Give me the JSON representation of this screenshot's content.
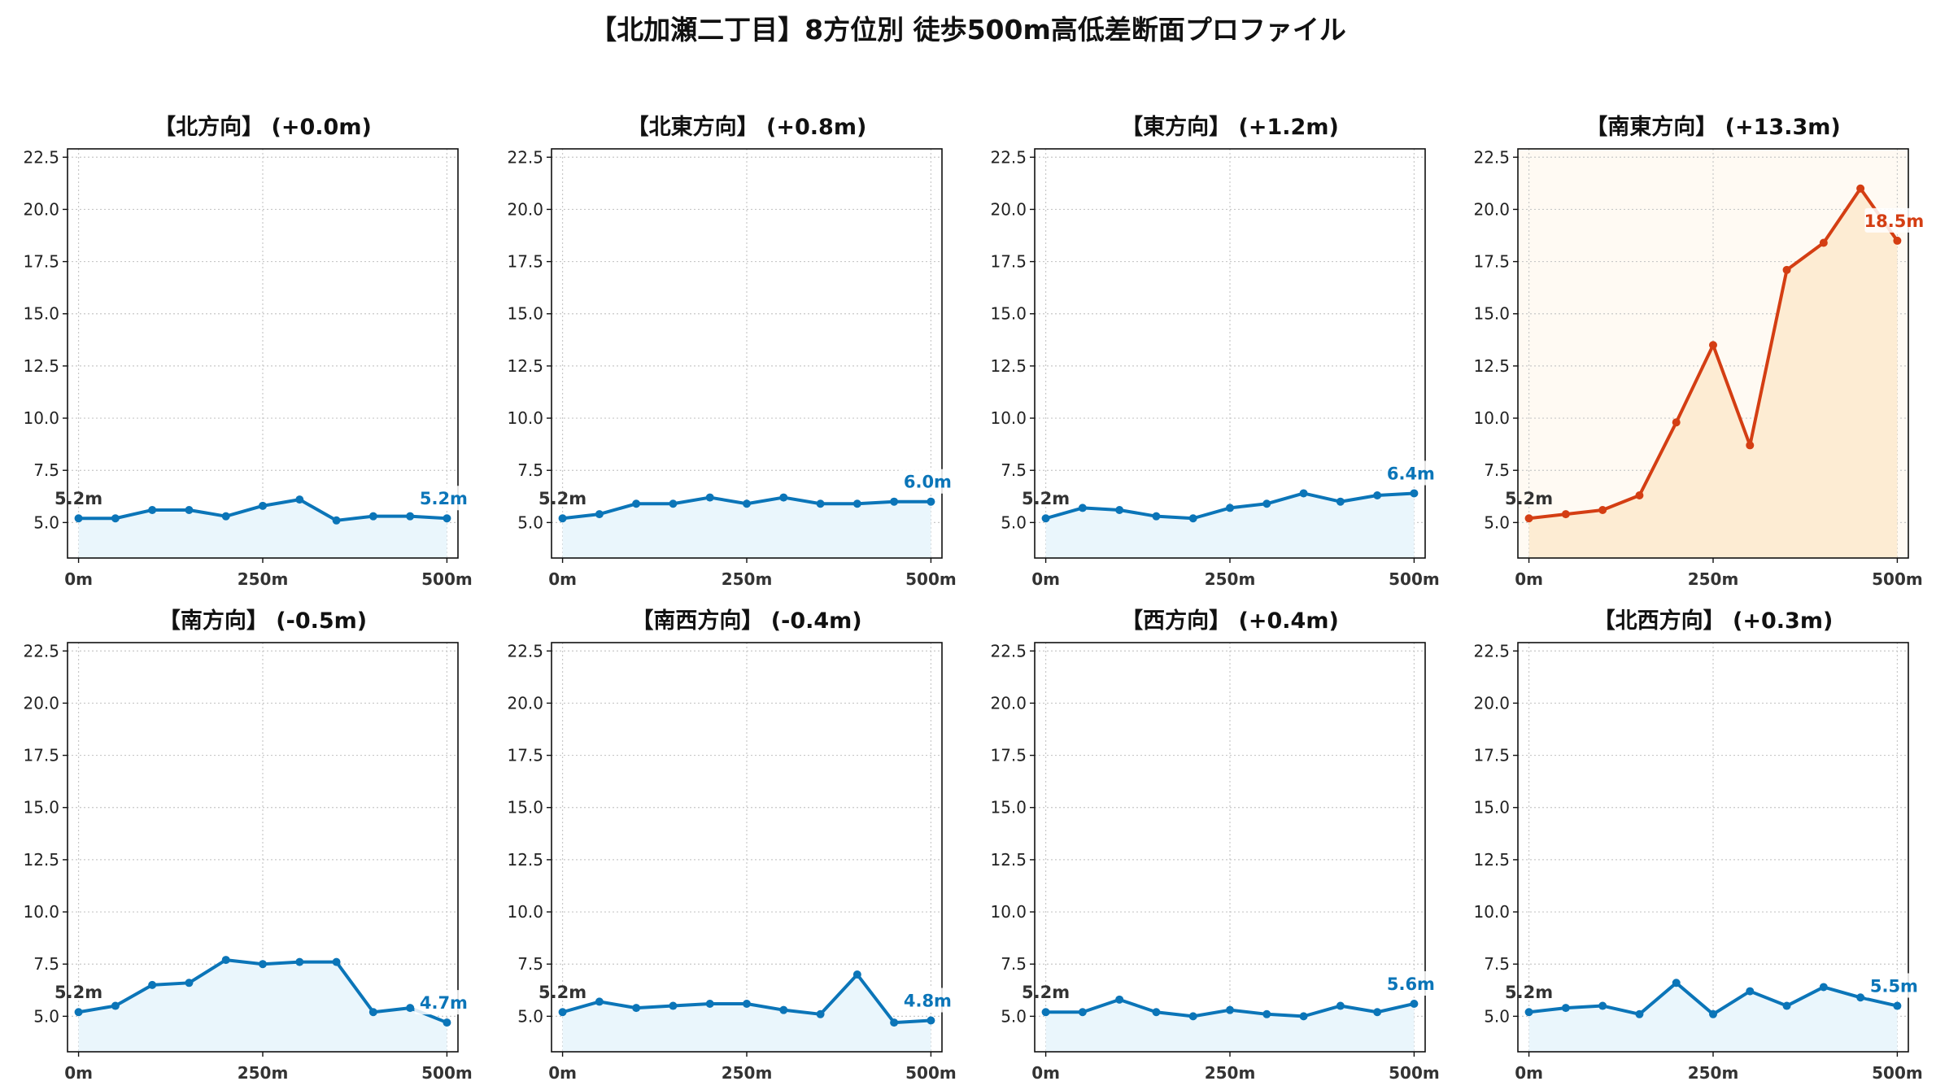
{
  "title": "【北加瀬二丁目】8方位別 徒歩500m高低差断面プロファイル",
  "colors": {
    "normal_line": "#0b75b8",
    "normal_fill": "#eaf6fc",
    "highlight_line": "#d43e13",
    "highlight_fill": "#fdecd3",
    "highlight_bg": "#fffaf3",
    "start_label": "#333333"
  },
  "chart_data": [
    {
      "type": "line",
      "title": "【北方向】 (+0.0m)",
      "x": [
        0,
        50,
        100,
        150,
        200,
        250,
        300,
        350,
        400,
        450,
        500
      ],
      "y": [
        5.2,
        5.2,
        5.6,
        5.6,
        5.3,
        5.8,
        6.1,
        5.1,
        5.3,
        5.3,
        5.2
      ],
      "start_label": "5.2m",
      "end_label": "5.2m",
      "xtick_labels": [
        "0m",
        "250m",
        "500m"
      ],
      "yticks": [
        "5.0",
        "7.5",
        "10.0",
        "12.5",
        "15.0",
        "17.5",
        "20.0",
        "22.5"
      ],
      "ylim": [
        3.3,
        22.9
      ],
      "xlim": [
        -15,
        515
      ],
      "grid": true,
      "highlight": false
    },
    {
      "type": "line",
      "title": "【北東方向】 (+0.8m)",
      "x": [
        0,
        50,
        100,
        150,
        200,
        250,
        300,
        350,
        400,
        450,
        500
      ],
      "y": [
        5.2,
        5.4,
        5.9,
        5.9,
        6.2,
        5.9,
        6.2,
        5.9,
        5.9,
        6.0,
        6.0
      ],
      "start_label": "5.2m",
      "end_label": "6.0m",
      "xtick_labels": [
        "0m",
        "250m",
        "500m"
      ],
      "yticks": [
        "5.0",
        "7.5",
        "10.0",
        "12.5",
        "15.0",
        "17.5",
        "20.0",
        "22.5"
      ],
      "ylim": [
        3.3,
        22.9
      ],
      "xlim": [
        -15,
        515
      ],
      "grid": true,
      "highlight": false
    },
    {
      "type": "line",
      "title": "【東方向】 (+1.2m)",
      "x": [
        0,
        50,
        100,
        150,
        200,
        250,
        300,
        350,
        400,
        450,
        500
      ],
      "y": [
        5.2,
        5.7,
        5.6,
        5.3,
        5.2,
        5.7,
        5.9,
        6.4,
        6.0,
        6.3,
        6.4
      ],
      "start_label": "5.2m",
      "end_label": "6.4m",
      "xtick_labels": [
        "0m",
        "250m",
        "500m"
      ],
      "yticks": [
        "5.0",
        "7.5",
        "10.0",
        "12.5",
        "15.0",
        "17.5",
        "20.0",
        "22.5"
      ],
      "ylim": [
        3.3,
        22.9
      ],
      "xlim": [
        -15,
        515
      ],
      "grid": true,
      "highlight": false
    },
    {
      "type": "line",
      "title": "【南東方向】 (+13.3m)",
      "x": [
        0,
        50,
        100,
        150,
        200,
        250,
        300,
        350,
        400,
        450,
        500
      ],
      "y": [
        5.2,
        5.4,
        5.6,
        6.3,
        9.8,
        13.5,
        8.7,
        17.1,
        18.4,
        21.0,
        18.5
      ],
      "start_label": "5.2m",
      "end_label": "18.5m",
      "xtick_labels": [
        "0m",
        "250m",
        "500m"
      ],
      "yticks": [
        "5.0",
        "7.5",
        "10.0",
        "12.5",
        "15.0",
        "17.5",
        "20.0",
        "22.5"
      ],
      "ylim": [
        3.3,
        22.9
      ],
      "xlim": [
        -15,
        515
      ],
      "grid": true,
      "highlight": true
    },
    {
      "type": "line",
      "title": "【南方向】 (-0.5m)",
      "x": [
        0,
        50,
        100,
        150,
        200,
        250,
        300,
        350,
        400,
        450,
        500
      ],
      "y": [
        5.2,
        5.5,
        6.5,
        6.6,
        7.7,
        7.5,
        7.6,
        7.6,
        5.2,
        5.4,
        4.7
      ],
      "start_label": "5.2m",
      "end_label": "4.7m",
      "xtick_labels": [
        "0m",
        "250m",
        "500m"
      ],
      "yticks": [
        "5.0",
        "7.5",
        "10.0",
        "12.5",
        "15.0",
        "17.5",
        "20.0",
        "22.5"
      ],
      "ylim": [
        3.3,
        22.9
      ],
      "xlim": [
        -15,
        515
      ],
      "grid": true,
      "highlight": false
    },
    {
      "type": "line",
      "title": "【南西方向】 (-0.4m)",
      "x": [
        0,
        50,
        100,
        150,
        200,
        250,
        300,
        350,
        400,
        450,
        500
      ],
      "y": [
        5.2,
        5.7,
        5.4,
        5.5,
        5.6,
        5.6,
        5.3,
        5.1,
        7.0,
        4.7,
        4.8
      ],
      "start_label": "5.2m",
      "end_label": "4.8m",
      "xtick_labels": [
        "0m",
        "250m",
        "500m"
      ],
      "yticks": [
        "5.0",
        "7.5",
        "10.0",
        "12.5",
        "15.0",
        "17.5",
        "20.0",
        "22.5"
      ],
      "ylim": [
        3.3,
        22.9
      ],
      "xlim": [
        -15,
        515
      ],
      "grid": true,
      "highlight": false
    },
    {
      "type": "line",
      "title": "【西方向】 (+0.4m)",
      "x": [
        0,
        50,
        100,
        150,
        200,
        250,
        300,
        350,
        400,
        450,
        500
      ],
      "y": [
        5.2,
        5.2,
        5.8,
        5.2,
        5.0,
        5.3,
        5.1,
        5.0,
        5.5,
        5.2,
        5.6
      ],
      "start_label": "5.2m",
      "end_label": "5.6m",
      "xtick_labels": [
        "0m",
        "250m",
        "500m"
      ],
      "yticks": [
        "5.0",
        "7.5",
        "10.0",
        "12.5",
        "15.0",
        "17.5",
        "20.0",
        "22.5"
      ],
      "ylim": [
        3.3,
        22.9
      ],
      "xlim": [
        -15,
        515
      ],
      "grid": true,
      "highlight": false
    },
    {
      "type": "line",
      "title": "【北西方向】 (+0.3m)",
      "x": [
        0,
        50,
        100,
        150,
        200,
        250,
        300,
        350,
        400,
        450,
        500
      ],
      "y": [
        5.2,
        5.4,
        5.5,
        5.1,
        6.6,
        5.1,
        6.2,
        5.5,
        6.4,
        5.9,
        5.5
      ],
      "start_label": "5.2m",
      "end_label": "5.5m",
      "xtick_labels": [
        "0m",
        "250m",
        "500m"
      ],
      "yticks": [
        "5.0",
        "7.5",
        "10.0",
        "12.5",
        "15.0",
        "17.5",
        "20.0",
        "22.5"
      ],
      "ylim": [
        3.3,
        22.9
      ],
      "xlim": [
        -15,
        515
      ],
      "grid": true,
      "highlight": false
    }
  ]
}
